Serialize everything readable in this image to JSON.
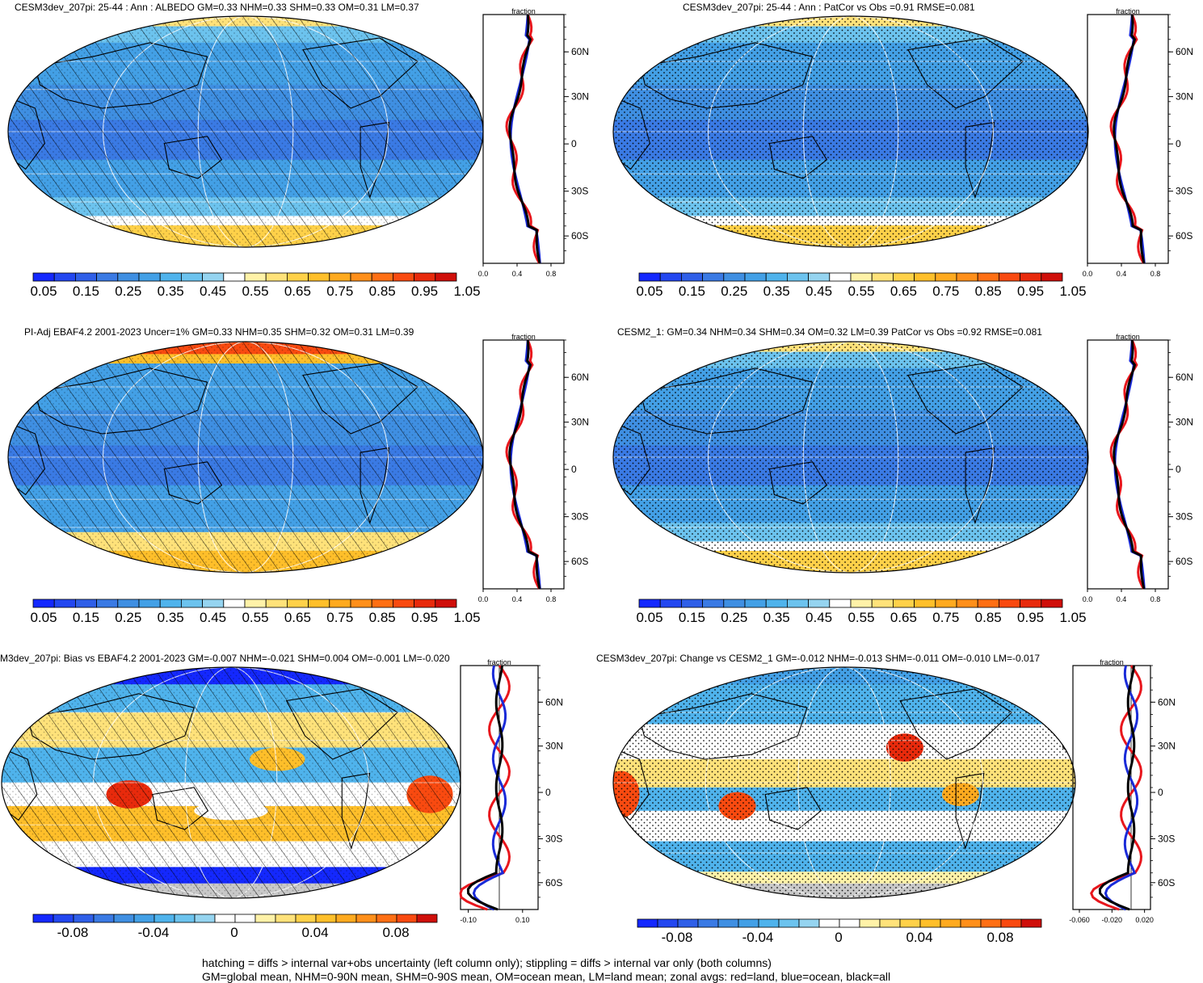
{
  "panels": [
    {
      "title": "CESM3dev_207pi: 25-44 : Ann : ALBEDO GM=0.33 NHM=0.33 SHM=0.33 OM=0.31 LM=0.37",
      "kind": "abs",
      "overlay": "hatch",
      "zonal_axis_title": "fraction",
      "zonal_x_ticks": [
        "0.0",
        "0.4",
        "0.8"
      ],
      "lat_labels": [
        "60N",
        "30N",
        "0",
        "30S",
        "60S"
      ],
      "cbar_labels": [
        "0.05",
        "0.15",
        "0.25",
        "0.35",
        "0.45",
        "0.55",
        "0.65",
        "0.75",
        "0.85",
        "0.95",
        "1.05"
      ]
    },
    {
      "title": "CESM3dev_207pi: 25-44 : Ann : PatCor vs Obs =0.91 RMSE=0.081",
      "kind": "abs",
      "overlay": "stipple",
      "zonal_axis_title": "fraction",
      "zonal_x_ticks": [
        "0.0",
        "0.4",
        "0.8"
      ],
      "lat_labels": [
        "60N",
        "30N",
        "0",
        "30S",
        "60S"
      ],
      "cbar_labels": [
        "0.05",
        "0.15",
        "0.25",
        "0.35",
        "0.45",
        "0.55",
        "0.65",
        "0.75",
        "0.85",
        "0.95",
        "1.05"
      ]
    },
    {
      "title": "PI-Adj EBAF4.2 2001-2023 Uncer=1% GM=0.33 NHM=0.35 SHM=0.32 OM=0.31 LM=0.39",
      "kind": "obs",
      "overlay": "hatch",
      "zonal_axis_title": "fraction",
      "zonal_x_ticks": [
        "0.0",
        "0.4",
        "0.8"
      ],
      "lat_labels": [
        "60N",
        "30N",
        "0",
        "30S",
        "60S"
      ],
      "cbar_labels": [
        "0.05",
        "0.15",
        "0.25",
        "0.35",
        "0.45",
        "0.55",
        "0.65",
        "0.75",
        "0.85",
        "0.95",
        "1.05"
      ]
    },
    {
      "title": "CESM2_1: GM=0.34 NHM=0.34 SHM=0.34 OM=0.32 LM=0.39 PatCor vs Obs =0.92 RMSE=0.081",
      "kind": "abs",
      "overlay": "stipple",
      "zonal_axis_title": "fraction",
      "zonal_x_ticks": [
        "0.0",
        "0.4",
        "0.8"
      ],
      "lat_labels": [
        "60N",
        "30N",
        "0",
        "30S",
        "60S"
      ],
      "cbar_labels": [
        "0.05",
        "0.15",
        "0.25",
        "0.35",
        "0.45",
        "0.55",
        "0.65",
        "0.75",
        "0.85",
        "0.95",
        "1.05"
      ]
    },
    {
      "title": "M3dev_207pi: Bias vs EBAF4.2 2001-2023 GM=-0.007 NHM=-0.021 SHM=0.004 OM=-0.001 LM=-0.020",
      "kind": "bias",
      "overlay": "hatch",
      "zonal_axis_title": "fraction",
      "zonal_x_ticks": [
        "-0.10",
        "0.10"
      ],
      "lat_labels": [
        "60N",
        "30N",
        "0",
        "30S",
        "60S"
      ],
      "cbar_labels": [
        "-0.08",
        "-0.04",
        "0",
        "0.04",
        "0.08"
      ]
    },
    {
      "title": "CESM3dev_207pi: Change vs CESM2_1 GM=-0.012 NHM=-0.013 SHM=-0.011 OM=-0.010 LM=-0.017",
      "kind": "change",
      "overlay": "stipple",
      "zonal_axis_title": "fraction",
      "zonal_x_ticks": [
        "-0.060",
        "-0.020",
        "0.020"
      ],
      "lat_labels": [
        "60N",
        "30N",
        "0",
        "30S",
        "60S"
      ],
      "cbar_labels": [
        "-0.08",
        "-0.04",
        "0",
        "0.04",
        "0.08"
      ]
    }
  ],
  "colors": {
    "abs_scale": [
      "#1428ff",
      "#2347f0",
      "#2f5fe8",
      "#3a7ae4",
      "#3f8fe2",
      "#43a0e6",
      "#4fb3ec",
      "#6cc3ee",
      "#95d4f0",
      "#ffffff",
      "#fff2a8",
      "#ffe27a",
      "#ffd149",
      "#ffbf2a",
      "#ffaa1f",
      "#ff8f1a",
      "#ff6f14",
      "#f94a10",
      "#e82a0c",
      "#cf0f0a"
    ],
    "diff_scale": [
      "#1428ff",
      "#2347f0",
      "#2f5fe8",
      "#3a7ae4",
      "#3f8fe2",
      "#43a0e6",
      "#4fb3ec",
      "#6cc3ee",
      "#95d4f0",
      "#ffffff",
      "#ffffff",
      "#fff2a8",
      "#ffe27a",
      "#ffd149",
      "#ffbf2a",
      "#ffaa1f",
      "#ff8f1a",
      "#ff6f14",
      "#f94a10",
      "#cf0f0a"
    ],
    "zonal_land": "#e8161c",
    "zonal_ocean": "#1a2bd8",
    "zonal_all": "#000000",
    "land_gray": "#c8c8c8"
  },
  "footer": {
    "line1": "hatching = diffs > internal var+obs uncertainty (left column only); stippling = diffs > internal var only (both columns)",
    "line2": "GM=global mean, NHM=0-90N mean, SHM=0-90S mean, OM=ocean mean, LM=land mean; zonal avgs: red=land, blue=ocean, black=all"
  }
}
